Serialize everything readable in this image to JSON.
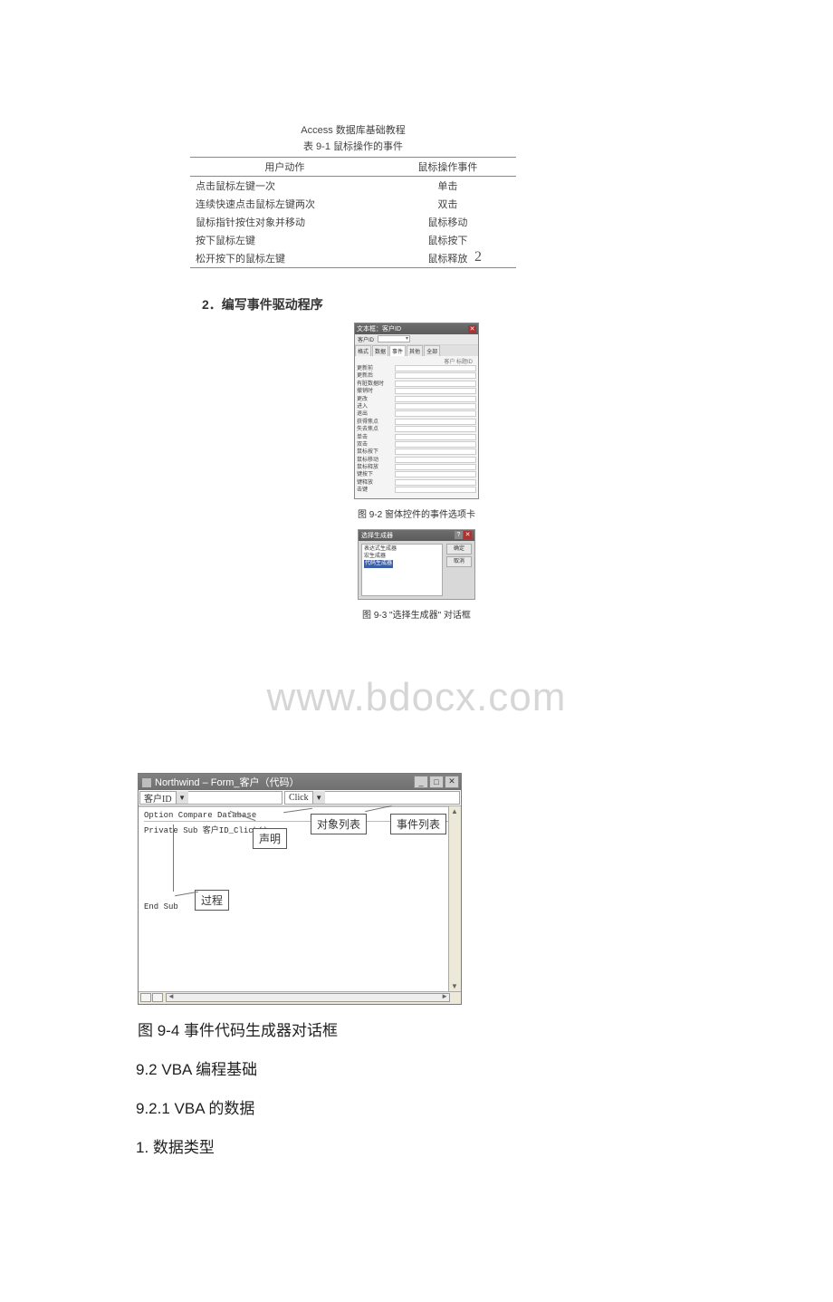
{
  "page_number": "2",
  "top_header": "Access 数据库基础教程",
  "table91": {
    "caption": "表 9-1  鼠标操作的事件",
    "columns": [
      "用户动作",
      "鼠标操作事件"
    ],
    "rows": [
      [
        "点击鼠标左键一次",
        "单击"
      ],
      [
        "连续快速点击鼠标左键两次",
        "双击"
      ],
      [
        "鼠标指针按住对象并移动",
        "鼠标移动"
      ],
      [
        "按下鼠标左键",
        "鼠标按下"
      ],
      [
        "松开按下的鼠标左键",
        "鼠标释放"
      ]
    ]
  },
  "heading2": "2．编写事件驱动程序",
  "fig92": {
    "title": "文本框：客户ID",
    "sel_label": "客户ID",
    "tabs": [
      "格式",
      "数据",
      "事件",
      "其他",
      "全部"
    ],
    "active_tab_index": 2,
    "props_col_hdr": "客户 标题ID",
    "properties": [
      "更新前",
      "更新后",
      "有脏数据时",
      "撤销时",
      "更改",
      "进入",
      "退出",
      "获得焦点",
      "失去焦点",
      "单击",
      "双击",
      "鼠标按下",
      "鼠标移动",
      "鼠标释放",
      "键按下",
      "键释放",
      "击键"
    ],
    "caption": "图 9-2 窗体控件的事件选项卡"
  },
  "fig93": {
    "title": "选择生成器",
    "help_btn": "?",
    "close_btn": "✕",
    "list_items": [
      "表达式生成器",
      "宏生成器",
      "代码生成器"
    ],
    "highlight_index": 2,
    "btn_ok": "确定",
    "btn_cancel": "取消",
    "caption": "图 9-3 \"选择生成器\" 对话框"
  },
  "watermark": "www.bdocx.com",
  "fig94": {
    "title_prefix": "Northwind – Form_客户（代码）",
    "combo_object": "客户ID",
    "combo_event": "Click",
    "code_declare": "Option Compare Database",
    "code_sub_start": "Private Sub 客户ID_Click()",
    "code_sub_end": "End Sub",
    "callout_declare": "声明",
    "callout_objectlist": "对象列表",
    "callout_eventlist": "事件列表",
    "callout_proc": "过程",
    "caption": "图 9-4 事件代码生成器对话框"
  },
  "sec92": "9.2 VBA 编程基础",
  "sec921": "9.2.1 VBA 的数据",
  "sec_datatype": "1. 数据类型"
}
